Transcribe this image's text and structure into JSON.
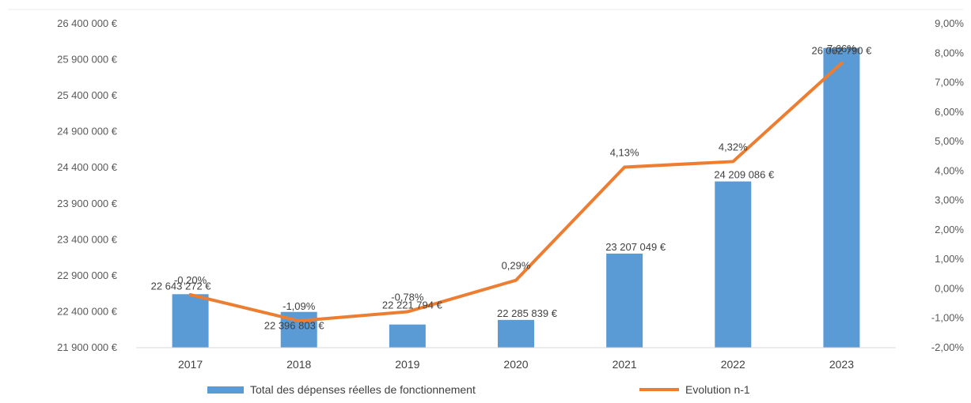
{
  "chart_data": {
    "type": "bar",
    "title": "",
    "categories": [
      "2017",
      "2018",
      "2019",
      "2020",
      "2021",
      "2022",
      "2023"
    ],
    "series": [
      {
        "name": "Total des dépenses réelles de fonctionnement",
        "type": "bar",
        "axis": "left",
        "color": "#5b9bd5",
        "values": [
          22643272,
          22396803,
          22221794,
          22285839,
          23207049,
          24209086,
          26062790
        ],
        "labels": [
          "22 643 272 €",
          "22 396 803 €",
          "22 221 794 €",
          "22 285 839 €",
          "23 207 049 €",
          "24 209 086 €",
          "26 062 790 €"
        ]
      },
      {
        "name": "Evolution n-1",
        "type": "line",
        "axis": "right",
        "color": "#ed7d31",
        "values": [
          -0.2,
          -1.09,
          -0.78,
          0.29,
          4.13,
          4.32,
          7.66
        ],
        "labels": [
          "-0,20%",
          "-1,09%",
          "-0,78%",
          "0,29%",
          "4,13%",
          "4,32%",
          "7,66%"
        ]
      }
    ],
    "y_left": {
      "ylim": [
        21900000,
        26400000
      ],
      "ticks": [
        21900000,
        22400000,
        22900000,
        23400000,
        23900000,
        24400000,
        24900000,
        25400000,
        25900000,
        26400000
      ],
      "tick_labels": [
        "21 900 000 €",
        "22 400 000 €",
        "22 900 000 €",
        "23 400 000 €",
        "23 900 000 €",
        "24 400 000 €",
        "24 900 000 €",
        "25 400 000 €",
        "25 900 000 €",
        "26 400 000 €"
      ]
    },
    "y_right": {
      "ylim": [
        -2,
        9
      ],
      "ticks": [
        -2,
        -1,
        0,
        1,
        2,
        3,
        4,
        5,
        6,
        7,
        8,
        9
      ],
      "tick_labels": [
        "-2,00%",
        "-1,00%",
        "0,00%",
        "1,00%",
        "2,00%",
        "3,00%",
        "4,00%",
        "5,00%",
        "6,00%",
        "7,00%",
        "8,00%",
        "9,00%"
      ]
    },
    "xlabel": "",
    "ylabel": "",
    "grid": false,
    "legend_position": "bottom"
  }
}
